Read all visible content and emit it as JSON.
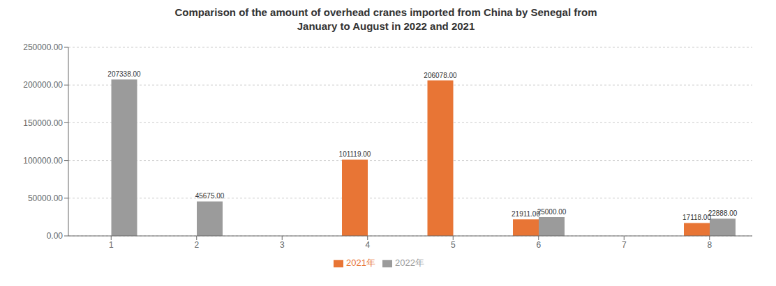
{
  "chart_data": {
    "type": "bar",
    "title": "Comparison of the amount of overhead cranes imported from China by Senegal from\nJanuary to August in 2022 and 2021",
    "categories": [
      "1",
      "2",
      "3",
      "4",
      "5",
      "6",
      "7",
      "8"
    ],
    "series": [
      {
        "name": "2021年",
        "color": "#E87535",
        "values": [
          0,
          0,
          0,
          101119,
          206078,
          21911,
          0,
          17118
        ],
        "value_labels": [
          null,
          null,
          null,
          "101119.00",
          "206078.00",
          "21911.00",
          null,
          "17118.00"
        ]
      },
      {
        "name": "2022年",
        "color": "#9B9B9B",
        "values": [
          207338,
          45675,
          0,
          0,
          0,
          25000,
          0,
          22888
        ],
        "value_labels": [
          "207338.00",
          "45675.00",
          null,
          null,
          null,
          "25000.00",
          null,
          "22888.00"
        ]
      }
    ],
    "ylim": [
      0,
      250000
    ],
    "yticks": [
      {
        "value": 0,
        "label": "0.00"
      },
      {
        "value": 50000,
        "label": "50000.00"
      },
      {
        "value": 100000,
        "label": "100000.00"
      },
      {
        "value": 150000,
        "label": "150000.00"
      },
      {
        "value": 200000,
        "label": "200000.00"
      },
      {
        "value": 250000,
        "label": "250000.00"
      }
    ],
    "grid": true,
    "data_labels": true,
    "legend": "bottom"
  }
}
